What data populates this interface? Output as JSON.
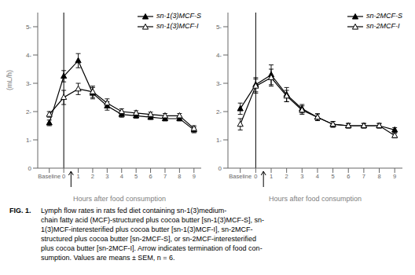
{
  "chart_data": [
    {
      "type": "line",
      "x": [
        -1,
        0,
        1,
        2,
        3,
        4,
        5,
        6,
        7,
        8,
        9
      ],
      "xlim": [
        -1.8,
        9.5
      ],
      "xticks": [
        {
          "value": -1,
          "label": "Baseline"
        },
        0,
        1,
        2,
        3,
        4,
        5,
        6,
        7,
        8,
        9
      ],
      "ylim": [
        0,
        5.5
      ],
      "yticks": [
        0,
        {
          "value": 1,
          "label": "1-"
        },
        {
          "value": 2,
          "label": "2-"
        },
        {
          "value": 3,
          "label": "3-"
        },
        {
          "value": 4,
          "label": "4-"
        },
        {
          "value": 5,
          "label": "5-"
        }
      ],
      "xlabel": "Hours after food consumption",
      "ylabel": "(mL/h)",
      "grid": false,
      "legend": "upper right",
      "vline_x": 0,
      "arrow_x": 0.5,
      "series": [
        {
          "name": "sn-1(3)MCF-S",
          "color": "#000000",
          "marker": "triangle",
          "values": [
            1.6,
            3.25,
            3.8,
            2.65,
            2.2,
            1.9,
            1.85,
            1.8,
            1.75,
            1.75,
            1.35
          ],
          "errors": [
            0.1,
            0.2,
            0.25,
            0.2,
            0.15,
            0.1,
            0.08,
            0.08,
            0.08,
            0.08,
            0.1
          ]
        },
        {
          "name": "sn-1(3)MCF-I",
          "color": "#000000",
          "marker": "triangle-open",
          "values": [
            1.9,
            2.5,
            2.8,
            2.7,
            2.3,
            2.0,
            1.95,
            1.9,
            1.85,
            1.85,
            1.4
          ],
          "errors": [
            0.1,
            0.25,
            0.2,
            0.2,
            0.15,
            0.1,
            0.08,
            0.08,
            0.08,
            0.08,
            0.1
          ]
        }
      ]
    },
    {
      "type": "line",
      "x": [
        -1,
        0,
        1,
        2,
        3,
        4,
        5,
        6,
        7,
        8,
        9
      ],
      "xlim": [
        -1.8,
        9.5
      ],
      "xticks": [
        {
          "value": -1,
          "label": "Baseline"
        },
        0,
        1,
        2,
        3,
        4,
        5,
        6,
        7,
        8,
        9
      ],
      "ylim": [
        0,
        5.5
      ],
      "yticks": [
        0,
        {
          "value": 1,
          "label": "1-"
        },
        {
          "value": 2,
          "label": "2-"
        },
        {
          "value": 3,
          "label": "3-"
        },
        {
          "value": 4,
          "label": "4-"
        },
        {
          "value": 5,
          "label": "5-"
        }
      ],
      "xlabel": "Hours after food consumption",
      "grid": false,
      "legend": "upper right",
      "vline_x": 0,
      "arrow_x": 0.5,
      "series": [
        {
          "name": "sn-2MCF-S",
          "color": "#000000",
          "marker": "triangle",
          "values": [
            2.1,
            2.95,
            3.3,
            2.6,
            2.1,
            1.8,
            1.55,
            1.5,
            1.5,
            1.5,
            1.35
          ],
          "errors": [
            0.2,
            0.25,
            0.35,
            0.25,
            0.15,
            0.12,
            0.1,
            0.08,
            0.08,
            0.08,
            0.08
          ]
        },
        {
          "name": "sn-2MCF-I",
          "color": "#000000",
          "marker": "triangle-open",
          "values": [
            1.55,
            2.9,
            3.2,
            2.55,
            2.05,
            1.8,
            1.55,
            1.5,
            1.5,
            1.5,
            1.15
          ],
          "errors": [
            0.2,
            0.25,
            0.3,
            0.2,
            0.15,
            0.12,
            0.1,
            0.08,
            0.08,
            0.08,
            0.08
          ]
        }
      ]
    }
  ],
  "caption_title": "FIG. 1.",
  "caption_lines": [
    "Lymph flow rates in rats fed diet containing sn-1(3)medium-",
    "chain fatty acid (MCF)-structured plus cocoa butter [sn-1(3)MCF-S], sn-",
    "1(3)MCF-interesterified plus cocoa butter [sn-1(3)MCF-I], sn-2MCF-",
    "structured plus cocoa butter [sn-2MCF-S], or sn-2MCF-interesterified",
    "plus cocoa butter [sn-2MCF-I]. Arrow indicates termination of food con-",
    "sumption. Values are means ± SEM, n = 6."
  ]
}
